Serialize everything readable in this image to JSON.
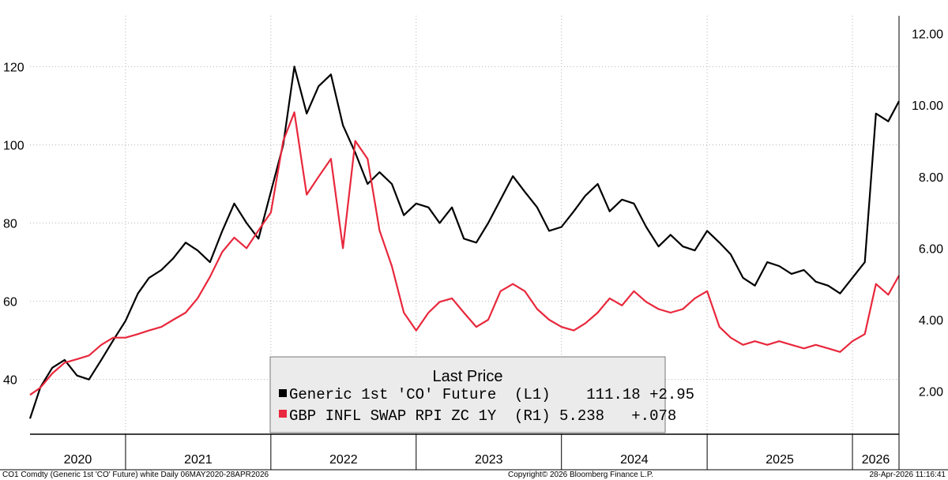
{
  "chart_data": {
    "type": "line",
    "legend": {
      "title": "Last Price",
      "placement": "bottom-center",
      "rows": [
        {
          "text": "Generic 1st 'CO' Future  (L1)    111.18 +2.95",
          "color": "#000000"
        },
        {
          "text": "GBP INFL SWAP RPI ZC 1Y  (R1) 5.238   +.078",
          "color": "#e8283c"
        }
      ]
    },
    "x_axis": {
      "range": [
        "2020-05-06",
        "2026-04-28"
      ],
      "year_labels": [
        "2020",
        "2021",
        "2022",
        "2023",
        "2024",
        "2025",
        "2026"
      ]
    },
    "y_left": {
      "range": [
        26,
        133
      ],
      "ticks": [
        "40",
        "60",
        "80",
        "100",
        "120"
      ]
    },
    "y_right": {
      "range": [
        0.8,
        12.5
      ],
      "ticks": [
        "2.00",
        "4.00",
        "6.00",
        "8.00",
        "10.00",
        "12.00"
      ]
    },
    "grid": true,
    "series": [
      {
        "color": "#000000",
        "axis": "left",
        "x": [
          "2020-05-06",
          "2020-06-01",
          "2020-07-01",
          "2020-08-01",
          "2020-09-01",
          "2020-10-01",
          "2020-11-01",
          "2020-12-01",
          "2021-01-01",
          "2021-02-01",
          "2021-03-01",
          "2021-04-01",
          "2021-05-01",
          "2021-06-01",
          "2021-07-01",
          "2021-08-01",
          "2021-09-01",
          "2021-10-01",
          "2021-11-01",
          "2021-12-01",
          "2022-01-01",
          "2022-02-01",
          "2022-03-01",
          "2022-04-01",
          "2022-05-01",
          "2022-06-01",
          "2022-07-01",
          "2022-08-01",
          "2022-09-01",
          "2022-10-01",
          "2022-11-01",
          "2022-12-01",
          "2023-01-01",
          "2023-02-01",
          "2023-03-01",
          "2023-04-01",
          "2023-05-01",
          "2023-06-01",
          "2023-07-01",
          "2023-08-01",
          "2023-09-01",
          "2023-10-01",
          "2023-11-01",
          "2023-12-01",
          "2024-01-01",
          "2024-02-01",
          "2024-03-01",
          "2024-04-01",
          "2024-05-01",
          "2024-06-01",
          "2024-07-01",
          "2024-08-01",
          "2024-09-01",
          "2024-10-01",
          "2024-11-01",
          "2024-12-01",
          "2025-01-01",
          "2025-02-01",
          "2025-03-01",
          "2025-04-01",
          "2025-05-01",
          "2025-06-01",
          "2025-07-01",
          "2025-08-01",
          "2025-09-01",
          "2025-10-01",
          "2025-11-01",
          "2025-12-01",
          "2026-01-01",
          "2026-02-01",
          "2026-03-01",
          "2026-04-01",
          "2026-04-28"
        ],
        "values": [
          30,
          38,
          43,
          45,
          41,
          40,
          45,
          50,
          55,
          62,
          66,
          68,
          71,
          75,
          73,
          70,
          78,
          85,
          80,
          76,
          88,
          100,
          120,
          108,
          115,
          118,
          105,
          98,
          90,
          93,
          90,
          82,
          85,
          84,
          80,
          84,
          76,
          75,
          80,
          86,
          92,
          88,
          84,
          78,
          79,
          83,
          87,
          90,
          83,
          86,
          85,
          79,
          74,
          77,
          74,
          73,
          78,
          75,
          72,
          66,
          64,
          70,
          69,
          67,
          68,
          65,
          64,
          62,
          66,
          70,
          108,
          106,
          111.18
        ]
      },
      {
        "color": "#e8283c",
        "axis": "right",
        "x": [
          "2020-05-06",
          "2020-06-01",
          "2020-07-01",
          "2020-08-01",
          "2020-09-01",
          "2020-10-01",
          "2020-11-01",
          "2020-12-01",
          "2021-01-01",
          "2021-02-01",
          "2021-03-01",
          "2021-04-01",
          "2021-05-01",
          "2021-06-01",
          "2021-07-01",
          "2021-08-01",
          "2021-09-01",
          "2021-10-01",
          "2021-11-01",
          "2021-12-01",
          "2022-01-01",
          "2022-02-01",
          "2022-03-01",
          "2022-04-01",
          "2022-05-01",
          "2022-06-01",
          "2022-07-01",
          "2022-08-01",
          "2022-09-01",
          "2022-10-01",
          "2022-11-01",
          "2022-12-01",
          "2023-01-01",
          "2023-02-01",
          "2023-03-01",
          "2023-04-01",
          "2023-05-01",
          "2023-06-01",
          "2023-07-01",
          "2023-08-01",
          "2023-09-01",
          "2023-10-01",
          "2023-11-01",
          "2023-12-01",
          "2024-01-01",
          "2024-02-01",
          "2024-03-01",
          "2024-04-01",
          "2024-05-01",
          "2024-06-01",
          "2024-07-01",
          "2024-08-01",
          "2024-09-01",
          "2024-10-01",
          "2024-11-01",
          "2024-12-01",
          "2025-01-01",
          "2025-02-01",
          "2025-03-01",
          "2025-04-01",
          "2025-05-01",
          "2025-06-01",
          "2025-07-01",
          "2025-08-01",
          "2025-09-01",
          "2025-10-01",
          "2025-11-01",
          "2025-12-01",
          "2026-01-01",
          "2026-02-01",
          "2026-03-01",
          "2026-04-01",
          "2026-04-28"
        ],
        "values": [
          1.9,
          2.1,
          2.5,
          2.8,
          2.9,
          3.0,
          3.3,
          3.5,
          3.5,
          3.6,
          3.7,
          3.8,
          4.0,
          4.2,
          4.6,
          5.2,
          5.9,
          6.3,
          6.0,
          6.5,
          7.0,
          9.0,
          9.8,
          7.5,
          8.0,
          8.5,
          6.0,
          9.0,
          8.5,
          6.5,
          5.5,
          4.2,
          3.7,
          4.2,
          4.5,
          4.6,
          4.2,
          3.8,
          4.0,
          4.8,
          5.0,
          4.8,
          4.3,
          4.0,
          3.8,
          3.7,
          3.9,
          4.2,
          4.6,
          4.4,
          4.8,
          4.5,
          4.3,
          4.2,
          4.3,
          4.6,
          4.8,
          3.8,
          3.5,
          3.3,
          3.4,
          3.3,
          3.4,
          3.3,
          3.2,
          3.3,
          3.2,
          3.1,
          3.4,
          3.6,
          5.0,
          4.7,
          5.238
        ]
      }
    ]
  },
  "footer": {
    "left": "CO1 Comdty (Generic 1st 'CO' Future) white Daily 06MAY2020-28APR2026",
    "center": "Copyright© 2026 Bloomberg Finance L.P.",
    "right": "28-Apr-2026 11:16:41"
  }
}
